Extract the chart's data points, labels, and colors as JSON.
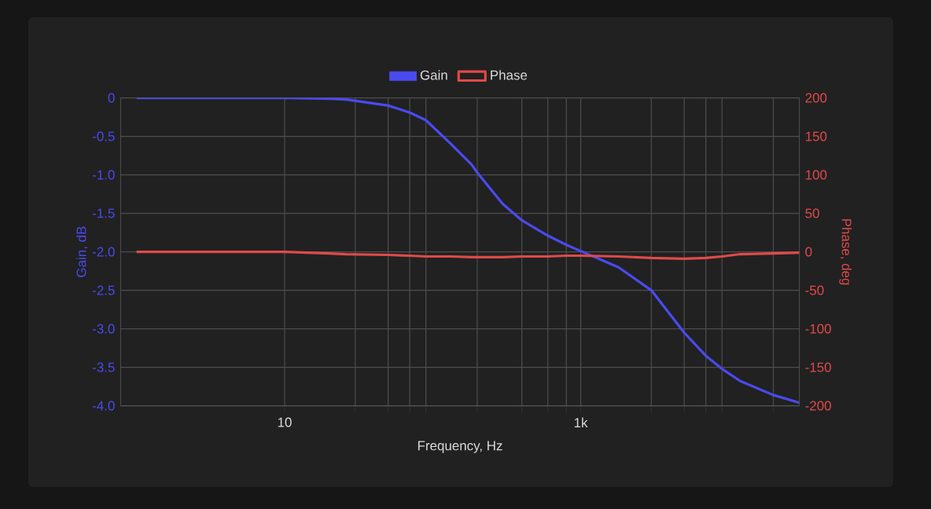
{
  "chart_data": {
    "type": "line",
    "xlabel": "Frequency, Hz",
    "ylabel": "Gain, dB",
    "y2label": "Phase, deg",
    "x": [
      1,
      3,
      10,
      20,
      26,
      50,
      70,
      90,
      133,
      184,
      200,
      298,
      400,
      600,
      800,
      1000,
      1800,
      3000,
      5000,
      7000,
      9000,
      12000,
      20000,
      30000
    ],
    "series": [
      {
        "name": "Gain",
        "color": "#4a4af0",
        "values": [
          0,
          0,
          0,
          -0.01,
          -0.02,
          -0.1,
          -0.19,
          -0.29,
          -0.6,
          -0.87,
          -0.97,
          -1.38,
          -1.59,
          -1.79,
          -1.91,
          -1.99,
          -2.2,
          -2.5,
          -3.05,
          -3.35,
          -3.52,
          -3.68,
          -3.86,
          -3.96
        ]
      },
      {
        "name": "Phase",
        "color": "#e04a4a",
        "axis": "y2",
        "values": [
          0,
          0,
          0,
          -2,
          -3,
          -4,
          -5,
          -6,
          -6,
          -7,
          -7,
          -7,
          -6,
          -6,
          -5,
          -5,
          -6,
          -8,
          -9,
          -8,
          -6,
          -3,
          -2,
          -1
        ]
      }
    ],
    "log": "x",
    "xlim": [
      0.78,
      30000
    ],
    "xticks": [
      {
        "value": 10,
        "label": "10"
      },
      {
        "value": 30,
        "label": null
      },
      {
        "value": 50,
        "label": null
      },
      {
        "value": 70,
        "label": null
      },
      {
        "value": 90,
        "label": null
      },
      {
        "value": 200,
        "label": null
      },
      {
        "value": 400,
        "label": null
      },
      {
        "value": 600,
        "label": null
      },
      {
        "value": 800,
        "label": null
      },
      {
        "value": 1000,
        "label": "1k"
      },
      {
        "value": 3000,
        "label": null
      },
      {
        "value": 5000,
        "label": null
      },
      {
        "value": 7000,
        "label": null
      },
      {
        "value": 9000,
        "label": null
      },
      {
        "value": 20000,
        "label": null
      }
    ],
    "ylim": [
      -4,
      0
    ],
    "yticks": [
      0,
      -0.5,
      {
        "value": -1,
        "label": "-1.0"
      },
      -1.5,
      {
        "value": -2,
        "label": "-2.0"
      },
      -2.5,
      {
        "value": -3,
        "label": "-3.0"
      },
      -3.5,
      {
        "value": -4,
        "label": "-4.0"
      }
    ],
    "y2lim": [
      -200,
      200
    ],
    "y2ticks": [
      200,
      150,
      100,
      50,
      0,
      -50,
      -100,
      -150,
      -200
    ],
    "grid": true,
    "legend": "top",
    "marker": "none",
    "line_style": "solid"
  }
}
